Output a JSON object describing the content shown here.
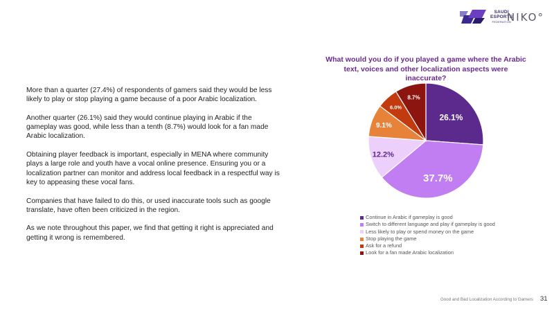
{
  "logo": {
    "saudi_line1": "SAUDI",
    "saudi_line2": "ESPORTS",
    "saudi_line3": "FEDERATION",
    "niko": "NIKO°"
  },
  "body": {
    "paragraphs": [
      "More than a quarter (27.4%) of respondents of gamers said they would be less likely to play or stop playing a game because of a poor Arabic localization.",
      "Another quarter (26.1%) said they would continue playing in Arabic if the gameplay was good, while less than a tenth (8.7%) would look for a fan made Arabic localization.",
      "Obtaining player feedback is important, especially in MENA where community plays a large role and youth have a vocal online presence. Ensuring you or a localization partner can monitor and address local feedback in a respectful way is key to appeasing these vocal fans.",
      "Companies that have failed to do this, or used inaccurate tools such as google translate, have often been criticized in the region.",
      "As we note throughout this paper, we find that getting it right is appreciated and getting it wrong is remembered."
    ]
  },
  "chart_data": {
    "type": "pie",
    "title": "What would you do if you played a game where the Arabic text, voices and other localization aspects were inaccurate?",
    "legend_position": "bottom",
    "slices": [
      {
        "label": "Continue in Arabic if gameplay is good",
        "value": 26.1,
        "display": "26.1%",
        "color": "#5b2a8c"
      },
      {
        "label": "Switch to different language and play if gameplay is good",
        "value": 37.7,
        "display": "37.7%",
        "color": "#c07ef2"
      },
      {
        "label": "Less likely to play or spend money on the game",
        "value": 12.2,
        "display": "12.2%",
        "color": "#ecd0fb"
      },
      {
        "label": "Stop playing the game",
        "value": 9.1,
        "display": "9.1%",
        "color": "#e7823a"
      },
      {
        "label": "Ask for a refund",
        "value": 6.0,
        "display": "6.0%",
        "color": "#c23b0f"
      },
      {
        "label": "Look for a fan made Arabic localization",
        "value": 8.7,
        "display": "8.7%",
        "color": "#8c1510"
      }
    ]
  },
  "footer": {
    "caption": "Good and Bad Localization According to Gamers",
    "page_number": "31"
  }
}
